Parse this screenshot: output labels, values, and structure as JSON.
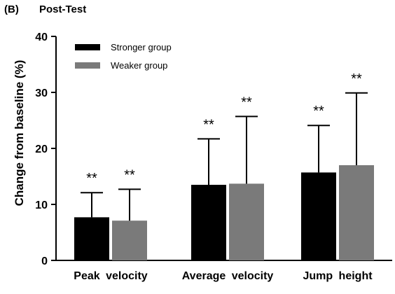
{
  "chart_data": {
    "type": "bar",
    "panel_label": "(B)",
    "title": "Post-Test",
    "ylabel": "Change from baseline (%)",
    "xlabel": "",
    "ylim": [
      0,
      40
    ],
    "yticks": [
      "0",
      "10",
      "20",
      "30",
      "40"
    ],
    "ytick_values": [
      0,
      10,
      20,
      30,
      40
    ],
    "categories": [
      "Peak velocity",
      "Average velocity",
      "Jump height"
    ],
    "series": [
      {
        "name": "Stronger group",
        "color": "#000000",
        "values": [
          7.7,
          13.5,
          15.7
        ],
        "error": [
          4.4,
          8.2,
          8.4
        ]
      },
      {
        "name": "Weaker group",
        "color": "#7a7a7a",
        "values": [
          7.1,
          13.7,
          17.0
        ],
        "error": [
          5.6,
          12.0,
          12.9
        ]
      }
    ],
    "significance": [
      [
        "**",
        "**",
        "**"
      ],
      [
        "**",
        "**",
        "**"
      ]
    ],
    "legend_position": "top-left",
    "grid": false
  }
}
